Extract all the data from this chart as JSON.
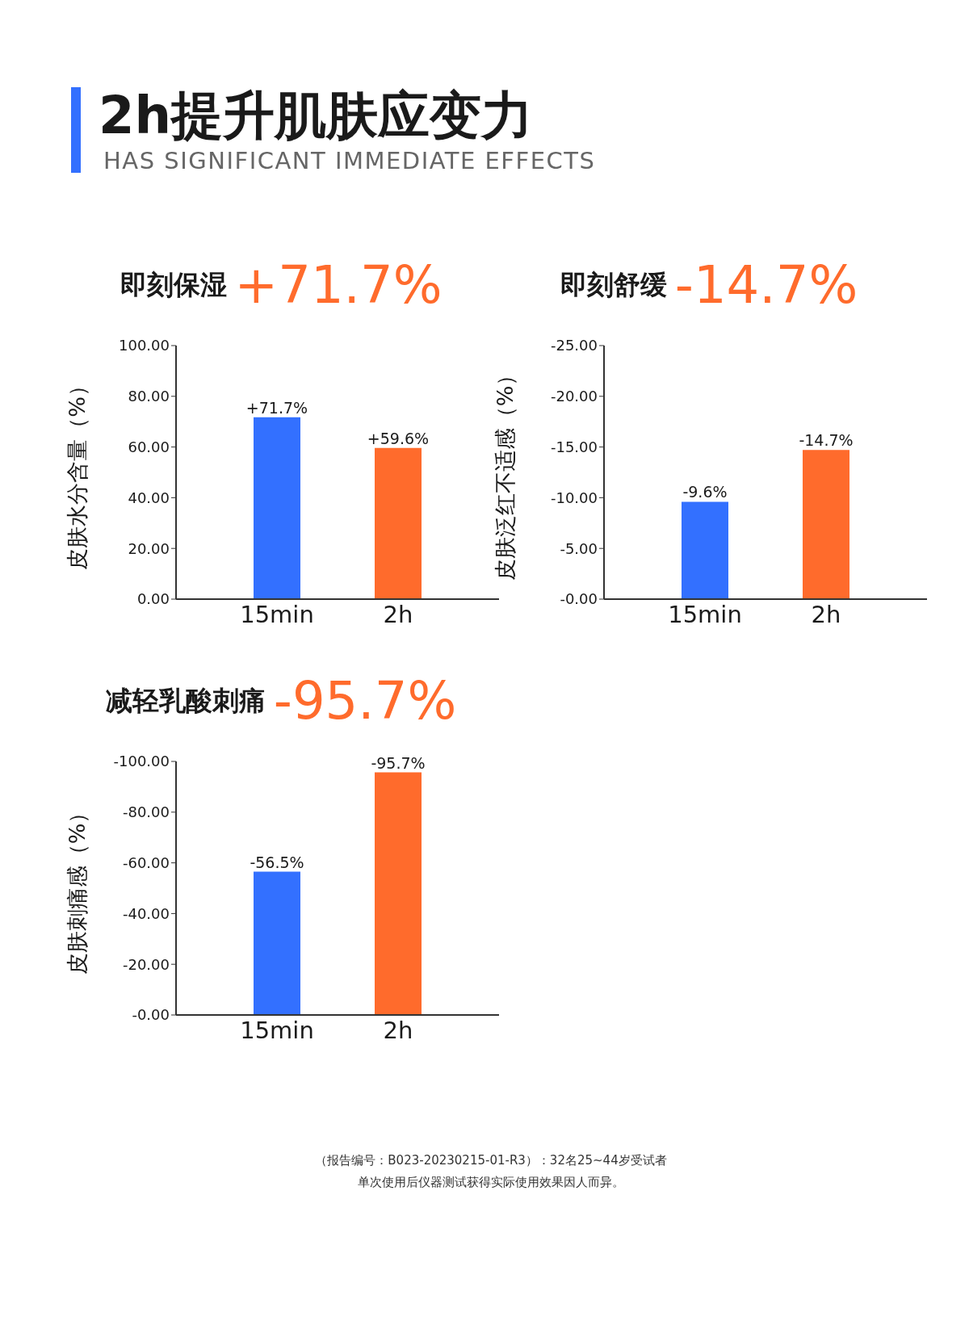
{
  "chart_data": [
    {
      "type": "other",
      "title": "2h提升肌肤应变力",
      "subtitle": "HAS SIGNIFICANT IMMEDIATE EFFECTS",
      "annotations": [
        "（报告编号：B023-20230215-01-R3）：32名25~44岁受试者",
        "单次使用后仪器测试获得实际使用效果因人而异。"
      ]
    },
    {
      "type": "bar",
      "title": "即刻保湿",
      "annotations": [
        "+71.7%"
      ],
      "ylabel": "皮肤水分含量（%）",
      "categories": [
        "15min",
        "2h"
      ],
      "values": [
        71.7,
        59.6
      ],
      "colors": [
        "#3370ff",
        "#ff6b2c"
      ],
      "value_labels": [
        "+71.7%",
        "+59.6%"
      ],
      "ylim": [
        0,
        100
      ],
      "yticks": [
        {
          "value": 0,
          "label": "0.00"
        },
        {
          "value": 20,
          "label": "20.00"
        },
        {
          "value": 40,
          "label": "40.00"
        },
        {
          "value": 60,
          "label": "60.00"
        },
        {
          "value": 80,
          "label": "80.00"
        },
        {
          "value": 100,
          "label": "100.00"
        }
      ]
    },
    {
      "type": "bar",
      "title": "即刻舒缓",
      "annotations": [
        "-14.7%"
      ],
      "ylabel": "皮肤泛红不适感（%）",
      "categories": [
        "15min",
        "2h"
      ],
      "values": [
        -9.6,
        -14.7
      ],
      "colors": [
        "#3370ff",
        "#ff6b2c"
      ],
      "value_labels": [
        "-9.6%",
        "-14.7%"
      ],
      "ylim": [
        0,
        -25
      ],
      "yticks": [
        {
          "value": 0,
          "label": "-0.00"
        },
        {
          "value": -5,
          "label": "-5.00"
        },
        {
          "value": -10,
          "label": "-10.00"
        },
        {
          "value": -15,
          "label": "-15.00"
        },
        {
          "value": -20,
          "label": "-20.00"
        },
        {
          "value": -25,
          "label": "-25.00"
        }
      ]
    },
    {
      "type": "bar",
      "title": "减轻乳酸刺痛",
      "annotations": [
        "-95.7%"
      ],
      "ylabel": "皮肤刺痛感（%）",
      "categories": [
        "15min",
        "2h"
      ],
      "values": [
        -56.5,
        -95.7
      ],
      "colors": [
        "#3370ff",
        "#ff6b2c"
      ],
      "value_labels": [
        "-56.5%",
        "-95.7%"
      ],
      "ylim": [
        0,
        -100
      ],
      "yticks": [
        {
          "value": 0,
          "label": "-0.00"
        },
        {
          "value": -20,
          "label": "-20.00"
        },
        {
          "value": -40,
          "label": "-40.00"
        },
        {
          "value": -60,
          "label": "-60.00"
        },
        {
          "value": -80,
          "label": "-80.00"
        },
        {
          "value": -100,
          "label": "-100.00"
        }
      ]
    }
  ]
}
